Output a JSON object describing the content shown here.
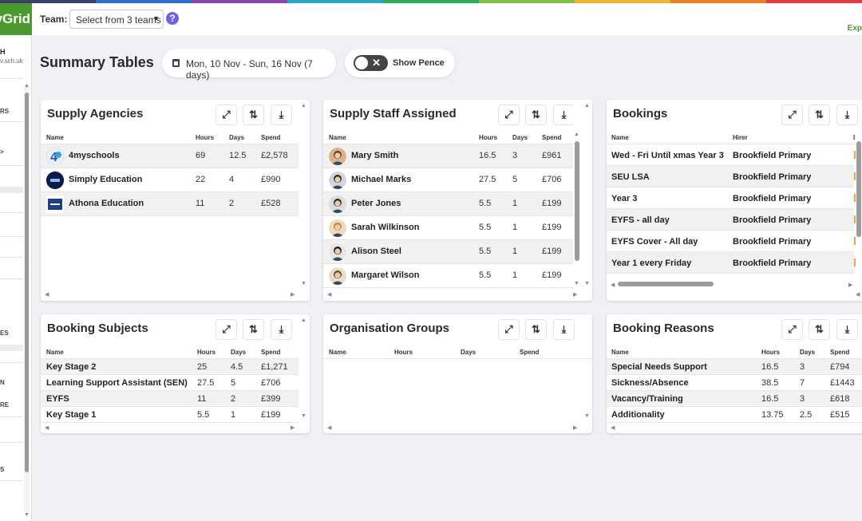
{
  "app": {
    "logo_text": "yGrid",
    "rainbow_colors": [
      "#3b3f6b",
      "#2f6dd0",
      "#8e44ad",
      "#2aa7c9",
      "#2fae5a",
      "#7dc242",
      "#f6b22a",
      "#ef7d23",
      "#e23b3b"
    ]
  },
  "topbar": {
    "team_label": "Team:",
    "team_select_value": "Select from 3 teams",
    "help_label": "?",
    "right_text": "Exp"
  },
  "sidebar": {
    "user_initial": "H",
    "school_text": "v.sch.uk",
    "items": [
      "RS",
      ">",
      "ES",
      "N",
      "RE",
      "S"
    ]
  },
  "page": {
    "title": "Summary Tables",
    "date_range": "Mon, 10 Nov - Sun, 16 Nov (7 days)",
    "toggle_label": "Show Pence"
  },
  "cards": {
    "supply_agencies": {
      "title": "Supply Agencies",
      "columns": [
        "Name",
        "Hours",
        "Days",
        "Spend"
      ],
      "rows": [
        {
          "name": "4myschools",
          "hours": "69",
          "days": "12.5",
          "spend": "£2,578"
        },
        {
          "name": "Simply Education",
          "hours": "22",
          "days": "4",
          "spend": "£990"
        },
        {
          "name": "Athona Education",
          "hours": "11",
          "days": "2",
          "spend": "£528"
        }
      ]
    },
    "supply_staff": {
      "title": "Supply Staff Assigned",
      "columns": [
        "Name",
        "Hours",
        "Days",
        "Spend"
      ],
      "rows": [
        {
          "name": "Mary Smith",
          "hours": "16.5",
          "days": "3",
          "spend": "£961"
        },
        {
          "name": "Michael Marks",
          "hours": "27.5",
          "days": "5",
          "spend": "£706"
        },
        {
          "name": "Peter Jones",
          "hours": "5.5",
          "days": "1",
          "spend": "£199"
        },
        {
          "name": "Sarah Wilkinson",
          "hours": "5.5",
          "days": "1",
          "spend": "£199"
        },
        {
          "name": "Alison Steel",
          "hours": "5.5",
          "days": "1",
          "spend": "£199"
        },
        {
          "name": "Margaret Wilson",
          "hours": "5.5",
          "days": "1",
          "spend": "£199"
        }
      ]
    },
    "bookings": {
      "title": "Bookings",
      "columns": [
        "Name",
        "Hirer",
        "I"
      ],
      "rows": [
        {
          "name": "Wed - Fri Until xmas Year 3",
          "hirer": "Brookfield Primary"
        },
        {
          "name": "SEU LSA",
          "hirer": "Brookfield Primary"
        },
        {
          "name": "Year 3",
          "hirer": "Brookfield Primary"
        },
        {
          "name": "EYFS - all day",
          "hirer": "Brookfield Primary"
        },
        {
          "name": "EYFS Cover - All day",
          "hirer": "Brookfield Primary"
        },
        {
          "name": "Year 1 every Friday",
          "hirer": "Brookfield Primary"
        }
      ]
    },
    "booking_subjects": {
      "title": "Booking Subjects",
      "columns": [
        "Name",
        "Hours",
        "Days",
        "Spend"
      ],
      "rows": [
        {
          "name": "Key Stage 2",
          "hours": "25",
          "days": "4.5",
          "spend": "£1,271"
        },
        {
          "name": "Learning Support Assistant (SEN)",
          "hours": "27.5",
          "days": "5",
          "spend": "£706"
        },
        {
          "name": "EYFS",
          "hours": "11",
          "days": "2",
          "spend": "£399"
        },
        {
          "name": "Key Stage 1",
          "hours": "5.5",
          "days": "1",
          "spend": "£199"
        }
      ]
    },
    "organisation_groups": {
      "title": "Organisation Groups",
      "columns": [
        "Name",
        "Hours",
        "Days",
        "Spend"
      ],
      "rows": []
    },
    "booking_reasons": {
      "title": "Booking Reasons",
      "columns": [
        "Name",
        "Hours",
        "Days",
        "Spend"
      ],
      "rows": [
        {
          "name": "Special Needs Support",
          "hours": "16.5",
          "days": "3",
          "spend": "£794"
        },
        {
          "name": "Sickness/Absence",
          "hours": "38.5",
          "days": "7",
          "spend": "£1443"
        },
        {
          "name": "Vacancy/Training",
          "hours": "16.5",
          "days": "3",
          "spend": "£618"
        },
        {
          "name": "Additionality",
          "hours": "13.75",
          "days": "2.5",
          "spend": "£515"
        }
      ]
    }
  },
  "icons": {
    "expand": "expand-icon",
    "sort": "sort-icon",
    "download": "download-icon",
    "calendar": "calendar-icon"
  }
}
